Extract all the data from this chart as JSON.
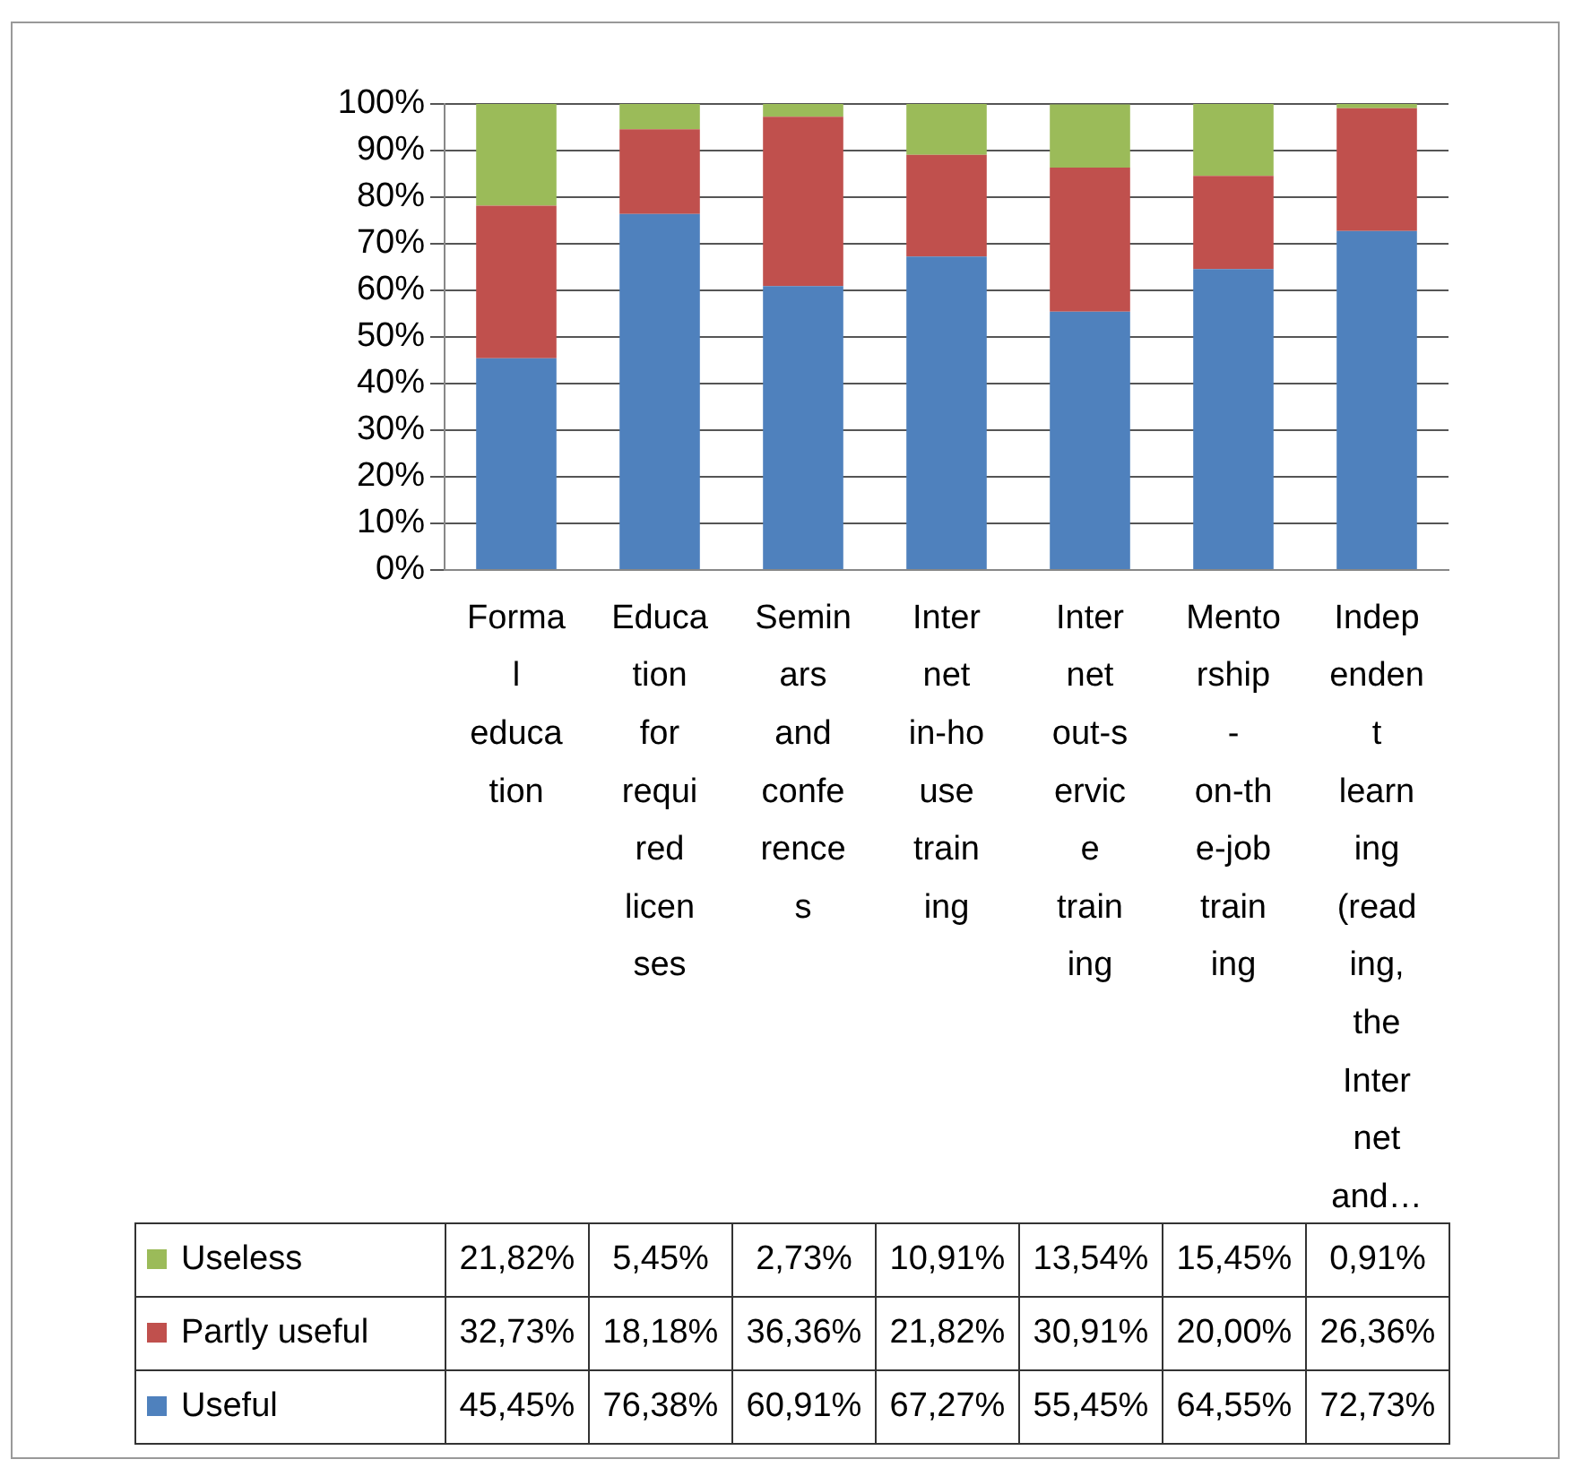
{
  "chart_data": {
    "type": "bar",
    "stacked": true,
    "categories": [
      "Formal education",
      "Education for required licenses",
      "Seminars and conferences",
      "Internet in-house training",
      "Internet out-service training",
      "Mentorship - on-the-job training",
      "Independent learning (reading, the Internet and…"
    ],
    "series": [
      {
        "name": "Useful",
        "color": "#4f81bd",
        "values": [
          45.45,
          76.38,
          60.91,
          67.27,
          55.45,
          64.55,
          72.73
        ],
        "value_labels": [
          "45,45%",
          "76,38%",
          "60,91%",
          "67,27%",
          "55,45%",
          "64,55%",
          "72,73%"
        ]
      },
      {
        "name": "Partly useful",
        "color": "#c0504d",
        "values": [
          32.73,
          18.18,
          36.36,
          21.82,
          30.91,
          20.0,
          26.36
        ],
        "value_labels": [
          "32,73%",
          "18,18%",
          "36,36%",
          "21,82%",
          "30,91%",
          "20,00%",
          "26,36%"
        ]
      },
      {
        "name": "Useless",
        "color": "#9bbb59",
        "values": [
          21.82,
          5.45,
          2.73,
          10.91,
          13.54,
          15.45,
          0.91
        ],
        "value_labels": [
          "21,82%",
          "5,45%",
          "2,73%",
          "10,91%",
          "13,54%",
          "15,45%",
          "0,91%"
        ]
      }
    ],
    "ylim": [
      0,
      100
    ],
    "yticks": [
      {
        "value": 0,
        "label": "0%"
      },
      {
        "value": 10,
        "label": "10%"
      },
      {
        "value": 20,
        "label": "20%"
      },
      {
        "value": 30,
        "label": "30%"
      },
      {
        "value": 40,
        "label": "40%"
      },
      {
        "value": 50,
        "label": "50%"
      },
      {
        "value": 60,
        "label": "60%"
      },
      {
        "value": 70,
        "label": "70%"
      },
      {
        "value": 80,
        "label": "80%"
      },
      {
        "value": 90,
        "label": "90%"
      },
      {
        "value": 100,
        "label": "100%"
      }
    ],
    "grid": "y",
    "legend": "bottom"
  }
}
